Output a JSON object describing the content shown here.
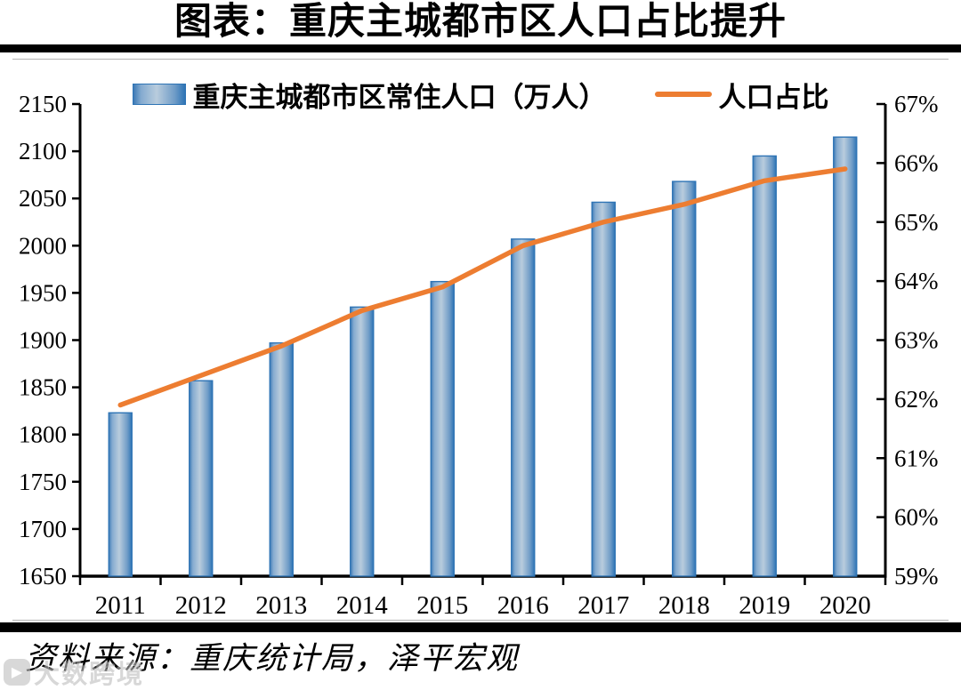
{
  "page": {
    "title": "图表：重庆主城都市区人口占比提升",
    "source": "资料来源：重庆统计局，泽平宏观",
    "watermark": "大数跨境"
  },
  "legend": {
    "bar_label": "重庆主城都市区常住人口（万人）",
    "line_label": "人口占比"
  },
  "colors": {
    "bar_border": "#2E74B5",
    "bar_gradient": [
      "#3d7ab6",
      "#85abd0",
      "#b9ccdd",
      "#6f9cc7",
      "#2e74b5"
    ],
    "line": "#ED7D31",
    "axis": "#000000"
  },
  "chart_data": {
    "type": "bar+line",
    "title": "图表：重庆主城都市区人口占比提升",
    "categories": [
      "2011",
      "2012",
      "2013",
      "2014",
      "2015",
      "2016",
      "2017",
      "2018",
      "2019",
      "2020"
    ],
    "series": [
      {
        "name": "重庆主城都市区常住人口（万人）",
        "type": "bar",
        "axis": "left",
        "values": [
          1823,
          1857,
          1897,
          1935,
          1962,
          2007,
          2046,
          2068,
          2095,
          2115
        ]
      },
      {
        "name": "人口占比",
        "type": "line",
        "axis": "right",
        "values": [
          61.9,
          62.4,
          62.9,
          63.5,
          63.9,
          64.6,
          65.0,
          65.3,
          65.7,
          65.9
        ]
      }
    ],
    "left_axis": {
      "min": 1650,
      "max": 1650,
      "top": 2150,
      "step": 50,
      "ticks": [
        1650,
        1700,
        1750,
        1800,
        1850,
        1900,
        1950,
        2000,
        2050,
        2100,
        2150
      ]
    },
    "right_axis": {
      "min": 59,
      "top": 67,
      "step": 1,
      "suffix": "%",
      "ticks": [
        59,
        60,
        61,
        62,
        63,
        64,
        65,
        66,
        67
      ]
    },
    "grid": false,
    "legend_position": "top"
  }
}
